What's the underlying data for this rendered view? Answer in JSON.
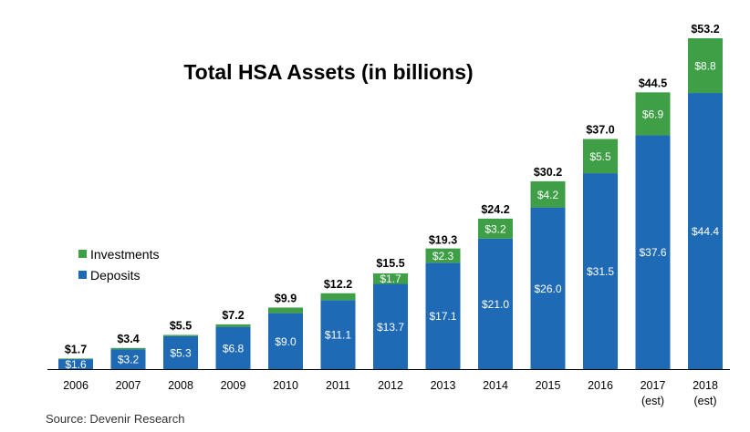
{
  "chart_data": {
    "type": "bar",
    "stacked": true,
    "title": "Total HSA Assets (in billions)",
    "categories": [
      "2006",
      "2007",
      "2008",
      "2009",
      "2010",
      "2011",
      "2012",
      "2013",
      "2014",
      "2015",
      "2016",
      "2017",
      "2018"
    ],
    "category_sublabels": [
      "",
      "",
      "",
      "",
      "",
      "",
      "",
      "",
      "",
      "",
      "",
      "(est)",
      "(est)"
    ],
    "series": [
      {
        "name": "Deposits",
        "color": "#1f6ab5",
        "values": [
          1.6,
          3.2,
          5.3,
          6.8,
          9.0,
          11.1,
          13.7,
          17.1,
          21.0,
          26.0,
          31.5,
          37.6,
          44.4
        ],
        "labels": [
          "$1.6",
          "$3.2",
          "$5.3",
          "$6.8",
          "$9.0",
          "$11.1",
          "$13.7",
          "$17.1",
          "$21.0",
          "$26.0",
          "$31.5",
          "$37.6",
          "$44.4"
        ]
      },
      {
        "name": "Investments",
        "color": "#3f9f47",
        "values": [
          0.1,
          0.2,
          0.2,
          0.4,
          0.9,
          1.1,
          1.7,
          2.3,
          3.2,
          4.2,
          5.5,
          6.9,
          8.8
        ],
        "labels": [
          "",
          "",
          "",
          "",
          "",
          "",
          "$1.7",
          "$2.3",
          "$3.2",
          "$4.2",
          "$5.5",
          "$6.9",
          "$8.8"
        ]
      }
    ],
    "totals": [
      "$1.7",
      "$3.4",
      "$5.5",
      "$7.2",
      "$9.9",
      "$12.2",
      "$15.5",
      "$19.3",
      "$24.2",
      "$30.2",
      "$37.0",
      "$44.5",
      "$53.2"
    ],
    "total_values": [
      1.7,
      3.4,
      5.5,
      7.2,
      9.9,
      12.2,
      15.5,
      19.3,
      24.2,
      30.2,
      37.0,
      44.5,
      53.2
    ],
    "ylim": [
      0,
      53.2
    ],
    "grid": false,
    "legend_placement": "left",
    "legend": [
      {
        "label": "Investments",
        "color": "#3f9f47"
      },
      {
        "label": "Deposits",
        "color": "#1f6ab5"
      }
    ],
    "source": "Source: Devenir Research"
  }
}
